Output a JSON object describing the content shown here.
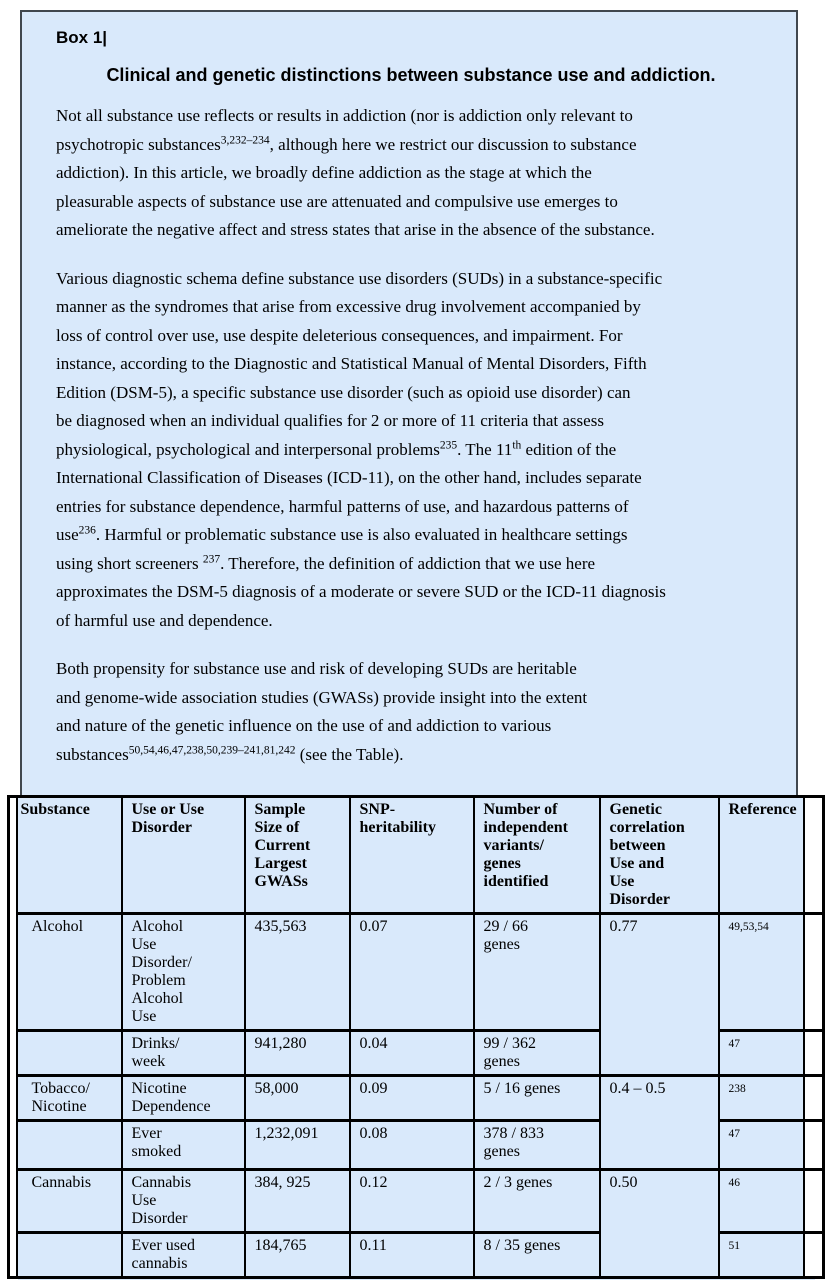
{
  "colors": {
    "box_bg": "#d9e9fb",
    "box_border": "#40474e",
    "table_border": "#000000"
  },
  "box": {
    "label": "Box 1|",
    "title": "Clinical and genetic distinctions between substance use and addiction.",
    "paragraphs": [
      {
        "runs": [
          {
            "t": "Not all substance use reflects or results in addiction (nor is addiction only relevant to\npsychotropic substances"
          },
          {
            "t": "3,232–234",
            "sup": true
          },
          {
            "t": ", although here we restrict our discussion to substance\naddiction). In this article, we broadly define addiction as the stage at which the\npleasurable aspects of substance use are attenuated and compulsive use emerges to\nameliorate the negative affect and stress states that arise in the absence of the substance."
          }
        ]
      },
      {
        "runs": [
          {
            "t": "Various diagnostic schema define substance use disorders (SUDs) in a substance-specific\nmanner as the syndromes that arise from excessive drug involvement accompanied by\nloss of control over use, use despite deleterious consequences, and impairment. For\ninstance, according to the Diagnostic and Statistical Manual of Mental Disorders, Fifth\nEdition (DSM-5), a specific substance use disorder (such as opioid use disorder) can\nbe diagnosed when an individual qualifies for 2 or more of 11 criteria that assess\nphysiological, psychological and interpersonal problems"
          },
          {
            "t": "235",
            "sup": true
          },
          {
            "t": ". The 11"
          },
          {
            "t": "th",
            "sup": true
          },
          {
            "t": " edition of the\nInternational Classification of Diseases (ICD-11), on the other hand, includes separate\nentries for substance dependence, harmful patterns of use, and hazardous patterns of\nuse"
          },
          {
            "t": "236",
            "sup": true
          },
          {
            "t": ". Harmful or problematic substance use is also evaluated in healthcare settings\nusing short screeners "
          },
          {
            "t": "237",
            "sup": true
          },
          {
            "t": ". Therefore, the definition of addiction that we use here\napproximates the DSM-5 diagnosis of a moderate or severe SUD or the ICD-11 diagnosis\nof harmful use and dependence."
          }
        ]
      },
      {
        "runs": [
          {
            "t": "Both propensity for substance use and risk of developing SUDs are heritable\nand genome-wide association studies (GWASs) provide insight into the extent\nand nature of the genetic influence on the use of and addiction to various\nsubstances"
          },
          {
            "t": "50,54,46,47,238,50,239–241,81,242",
            "sup": true
          },
          {
            "t": " (see the Table)."
          }
        ]
      }
    ]
  },
  "table": {
    "headers": [
      "Substance",
      "Use or Use\nDisorder",
      "Sample\nSize of\nCurrent\nLargest\nGWASs",
      "SNP-\nheritability",
      "Number of\nindependent\nvariants/\ngenes\nidentified",
      "Genetic\ncorrelation\nbetween\nUse and\nUse\nDisorder",
      "Reference"
    ],
    "rows": [
      {
        "substance": "Alcohol",
        "use": "Alcohol\nUse\nDisorder/\nProblem\nAlcohol\nUse",
        "sample": "435,563",
        "snp": "0.07",
        "variants": "29 / 66\ngenes",
        "correlation": "0.77",
        "corr_span": 2,
        "ref": "49,53,54"
      },
      {
        "substance": "",
        "use": "Drinks/\nweek",
        "sample": "941,280",
        "snp": "0.04",
        "variants": "99 / 362\ngenes",
        "correlation": null,
        "ref": "47"
      },
      {
        "substance": "Tobacco/\nNicotine",
        "use": "Nicotine\nDependence",
        "sample": "58,000",
        "snp": "0.09",
        "variants": "5 / 16 genes",
        "correlation": "0.4 – 0.5",
        "corr_span": 2,
        "ref": "238"
      },
      {
        "substance": "",
        "use": "Ever\nsmoked",
        "sample": "1,232,091",
        "snp": "0.08",
        "variants": "378 / 833\ngenes",
        "correlation": null,
        "ref": "47"
      },
      {
        "substance": "Cannabis",
        "use": "Cannabis\nUse\nDisorder",
        "sample": "384, 925",
        "snp": "0.12",
        "variants": "2 / 3 genes",
        "correlation": "0.50",
        "corr_span": 2,
        "ref": "46"
      },
      {
        "substance": "",
        "use": "Ever used\ncannabis",
        "sample": "184,765",
        "snp": "0.11",
        "variants": "8 / 35 genes",
        "correlation": null,
        "ref": "51"
      }
    ]
  }
}
